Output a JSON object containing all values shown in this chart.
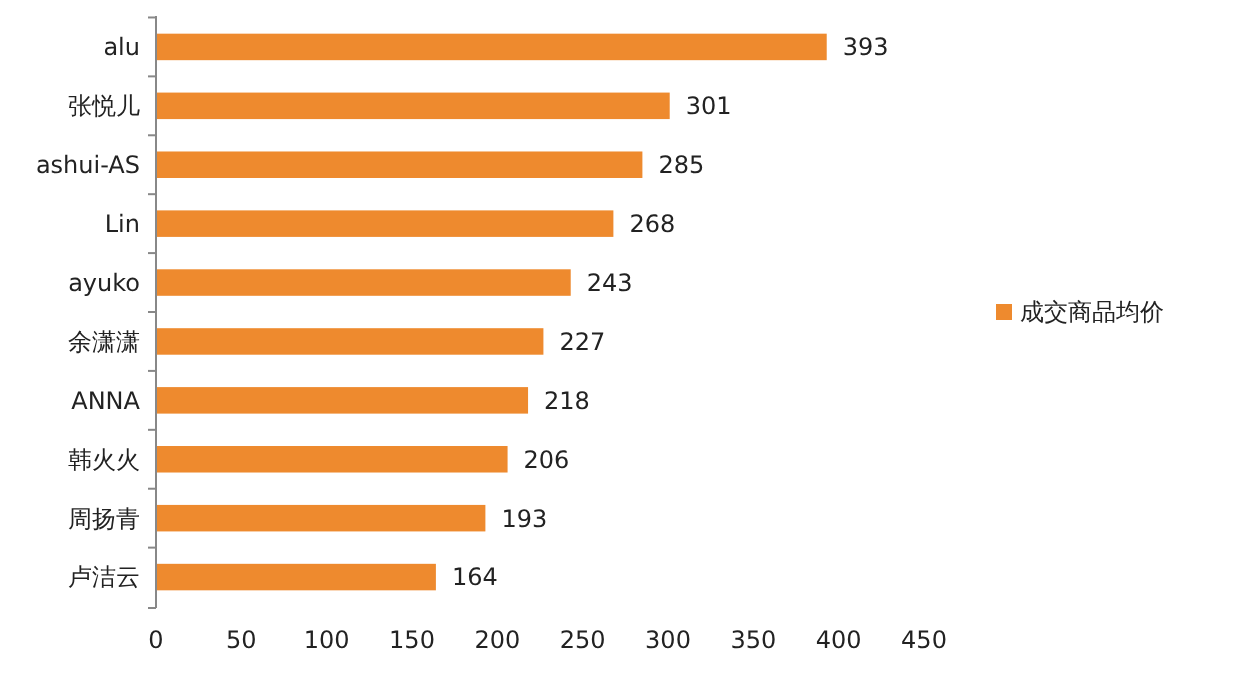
{
  "chart_data": {
    "type": "bar",
    "orientation": "horizontal",
    "categories": [
      "alu",
      "张悦儿",
      "ashui-AS",
      "Lin",
      "ayuko",
      "余潇潇",
      "ANNA",
      "韩火火",
      "周扬青",
      "卢洁云"
    ],
    "series": [
      {
        "name": "成交商品均价",
        "color": "#ee8a2e",
        "values": [
          393,
          301,
          285,
          268,
          243,
          227,
          218,
          206,
          193,
          164
        ]
      }
    ],
    "xlim": [
      0,
      450
    ],
    "xticks": [
      0,
      50,
      100,
      150,
      200,
      250,
      300,
      350,
      400,
      450
    ],
    "data_labels": true,
    "legend": "right",
    "grid": false
  }
}
